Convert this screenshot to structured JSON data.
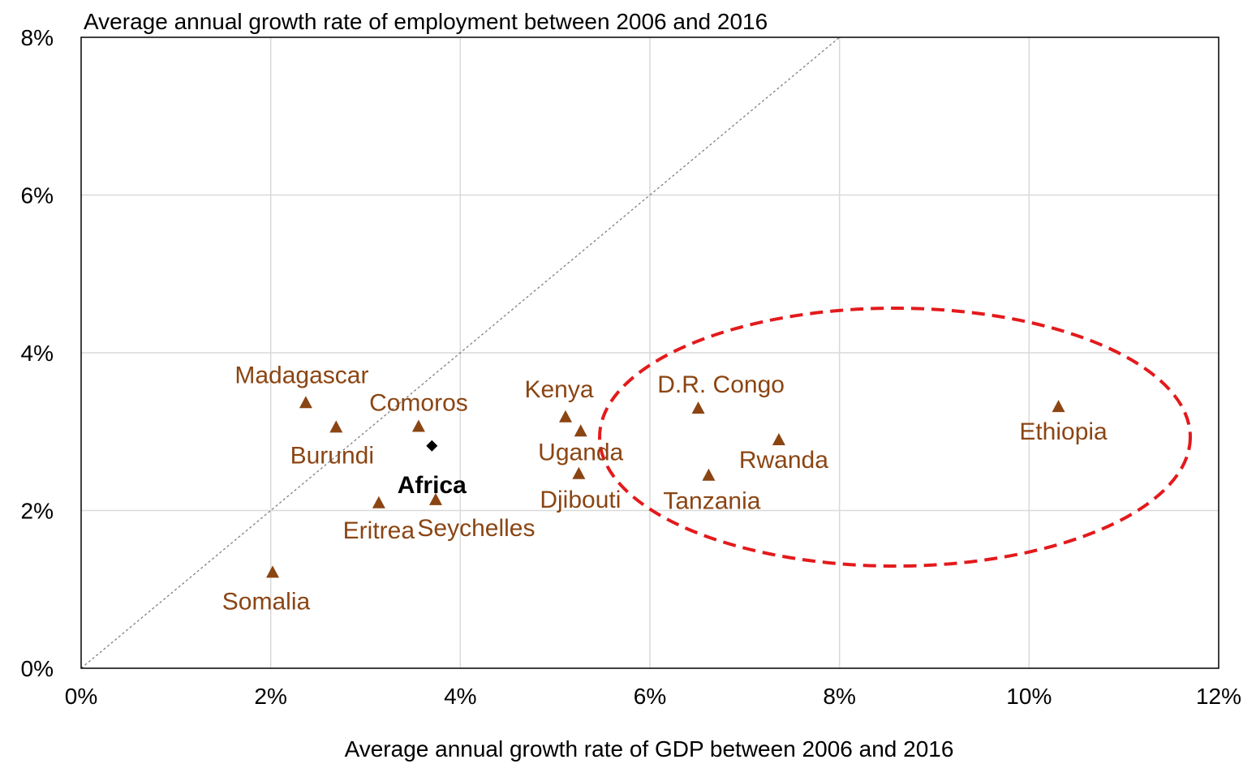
{
  "chart_data": {
    "type": "scatter",
    "title": "",
    "xlabel": "Average annual growth rate of GDP between 2006 and 2016",
    "ylabel": "Average annual growth rate of employment between 2006 and 2016",
    "xlim": [
      0,
      12
    ],
    "ylim": [
      0,
      8
    ],
    "x_ticks": [
      "0%",
      "2%",
      "4%",
      "6%",
      "8%",
      "10%",
      "12%"
    ],
    "y_ticks": [
      "0%",
      "2%",
      "4%",
      "6%",
      "8%"
    ],
    "grid": true,
    "reference_line": "y = x (dotted)",
    "highlight": "dashed red ellipse around high-GDP-growth countries",
    "colors": {
      "country": "#8B4513",
      "aggregate": "#000000",
      "highlight": "#E31A1C",
      "grid": "#D9D9D9"
    },
    "points": [
      {
        "name": "Madagascar",
        "x": 2.37,
        "y": 3.37,
        "marker": "triangle"
      },
      {
        "name": "Burundi",
        "x": 2.69,
        "y": 3.06,
        "marker": "triangle"
      },
      {
        "name": "Comoros",
        "x": 3.56,
        "y": 3.07,
        "marker": "triangle"
      },
      {
        "name": "Africa",
        "x": 3.7,
        "y": 2.82,
        "marker": "diamond"
      },
      {
        "name": "Eritrea",
        "x": 3.14,
        "y": 2.1,
        "marker": "triangle"
      },
      {
        "name": "Seychelles",
        "x": 3.74,
        "y": 2.14,
        "marker": "triangle"
      },
      {
        "name": "Somalia",
        "x": 2.02,
        "y": 1.22,
        "marker": "triangle"
      },
      {
        "name": "Kenya",
        "x": 5.11,
        "y": 3.19,
        "marker": "triangle"
      },
      {
        "name": "Uganda",
        "x": 5.27,
        "y": 3.01,
        "marker": "triangle"
      },
      {
        "name": "Djibouti",
        "x": 5.25,
        "y": 2.47,
        "marker": "triangle"
      },
      {
        "name": "D.R. Congo",
        "x": 6.51,
        "y": 3.3,
        "marker": "triangle"
      },
      {
        "name": "Rwanda",
        "x": 7.36,
        "y": 2.9,
        "marker": "triangle"
      },
      {
        "name": "Tanzania",
        "x": 6.62,
        "y": 2.45,
        "marker": "triangle"
      },
      {
        "name": "Ethiopia",
        "x": 10.31,
        "y": 3.32,
        "marker": "triangle"
      }
    ]
  }
}
